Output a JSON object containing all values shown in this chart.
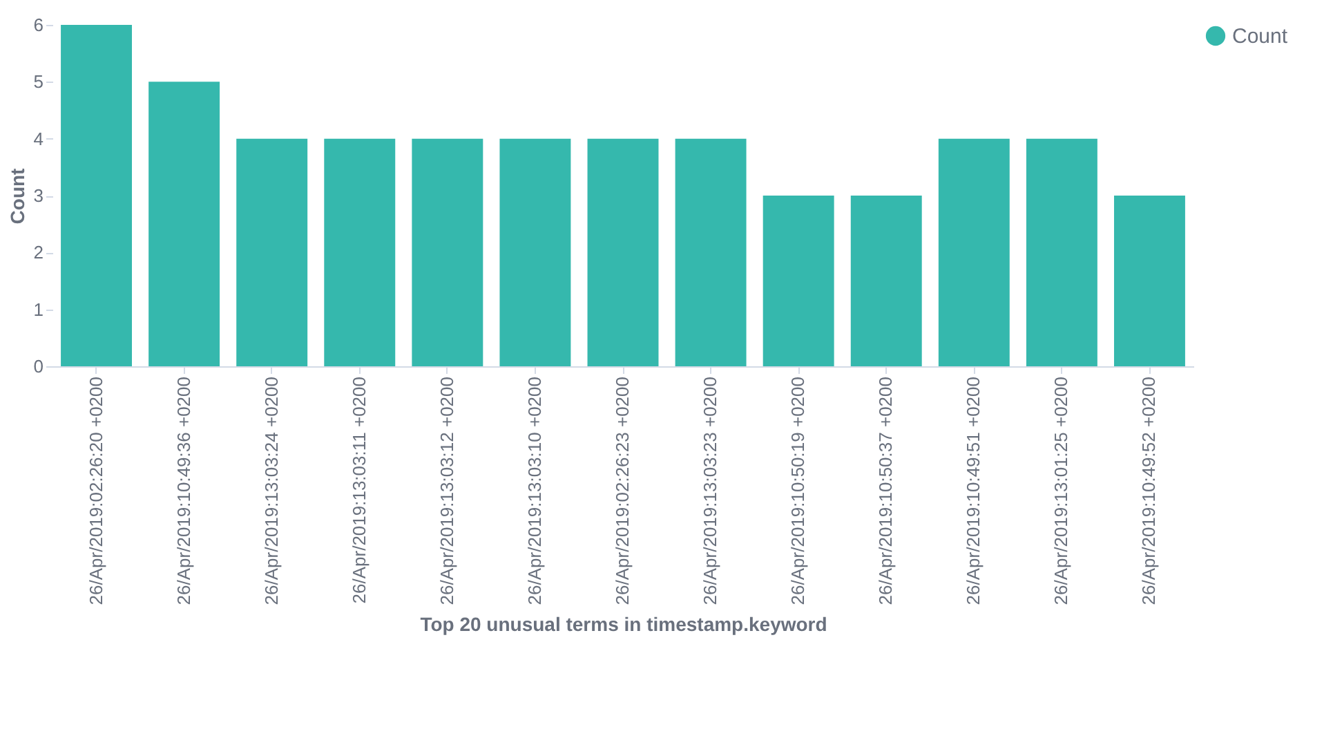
{
  "chart_data": {
    "type": "bar",
    "xlabel": "Top 20 unusual terms in timestamp.keyword",
    "ylabel": "Count",
    "categories": [
      "26/Apr/2019:02:26:20 +0200",
      "26/Apr/2019:10:49:36 +0200",
      "26/Apr/2019:13:03:24 +0200",
      "26/Apr/2019:13:03:11 +0200",
      "26/Apr/2019:13:03:12 +0200",
      "26/Apr/2019:13:03:10 +0200",
      "26/Apr/2019:02:26:23 +0200",
      "26/Apr/2019:13:03:23 +0200",
      "26/Apr/2019:10:50:19 +0200",
      "26/Apr/2019:10:50:37 +0200",
      "26/Apr/2019:10:49:51 +0200",
      "26/Apr/2019:13:01:25 +0200",
      "26/Apr/2019:10:49:52 +0200"
    ],
    "series": [
      {
        "name": "Count",
        "color": "#35b8ad",
        "values": [
          6,
          5,
          4,
          4,
          4,
          4,
          4,
          4,
          3,
          3,
          4,
          4,
          3
        ]
      }
    ],
    "ylim": [
      0,
      6
    ],
    "yticks": [
      0,
      1,
      2,
      3,
      4,
      5,
      6
    ],
    "grid": false,
    "legend": "top right"
  }
}
